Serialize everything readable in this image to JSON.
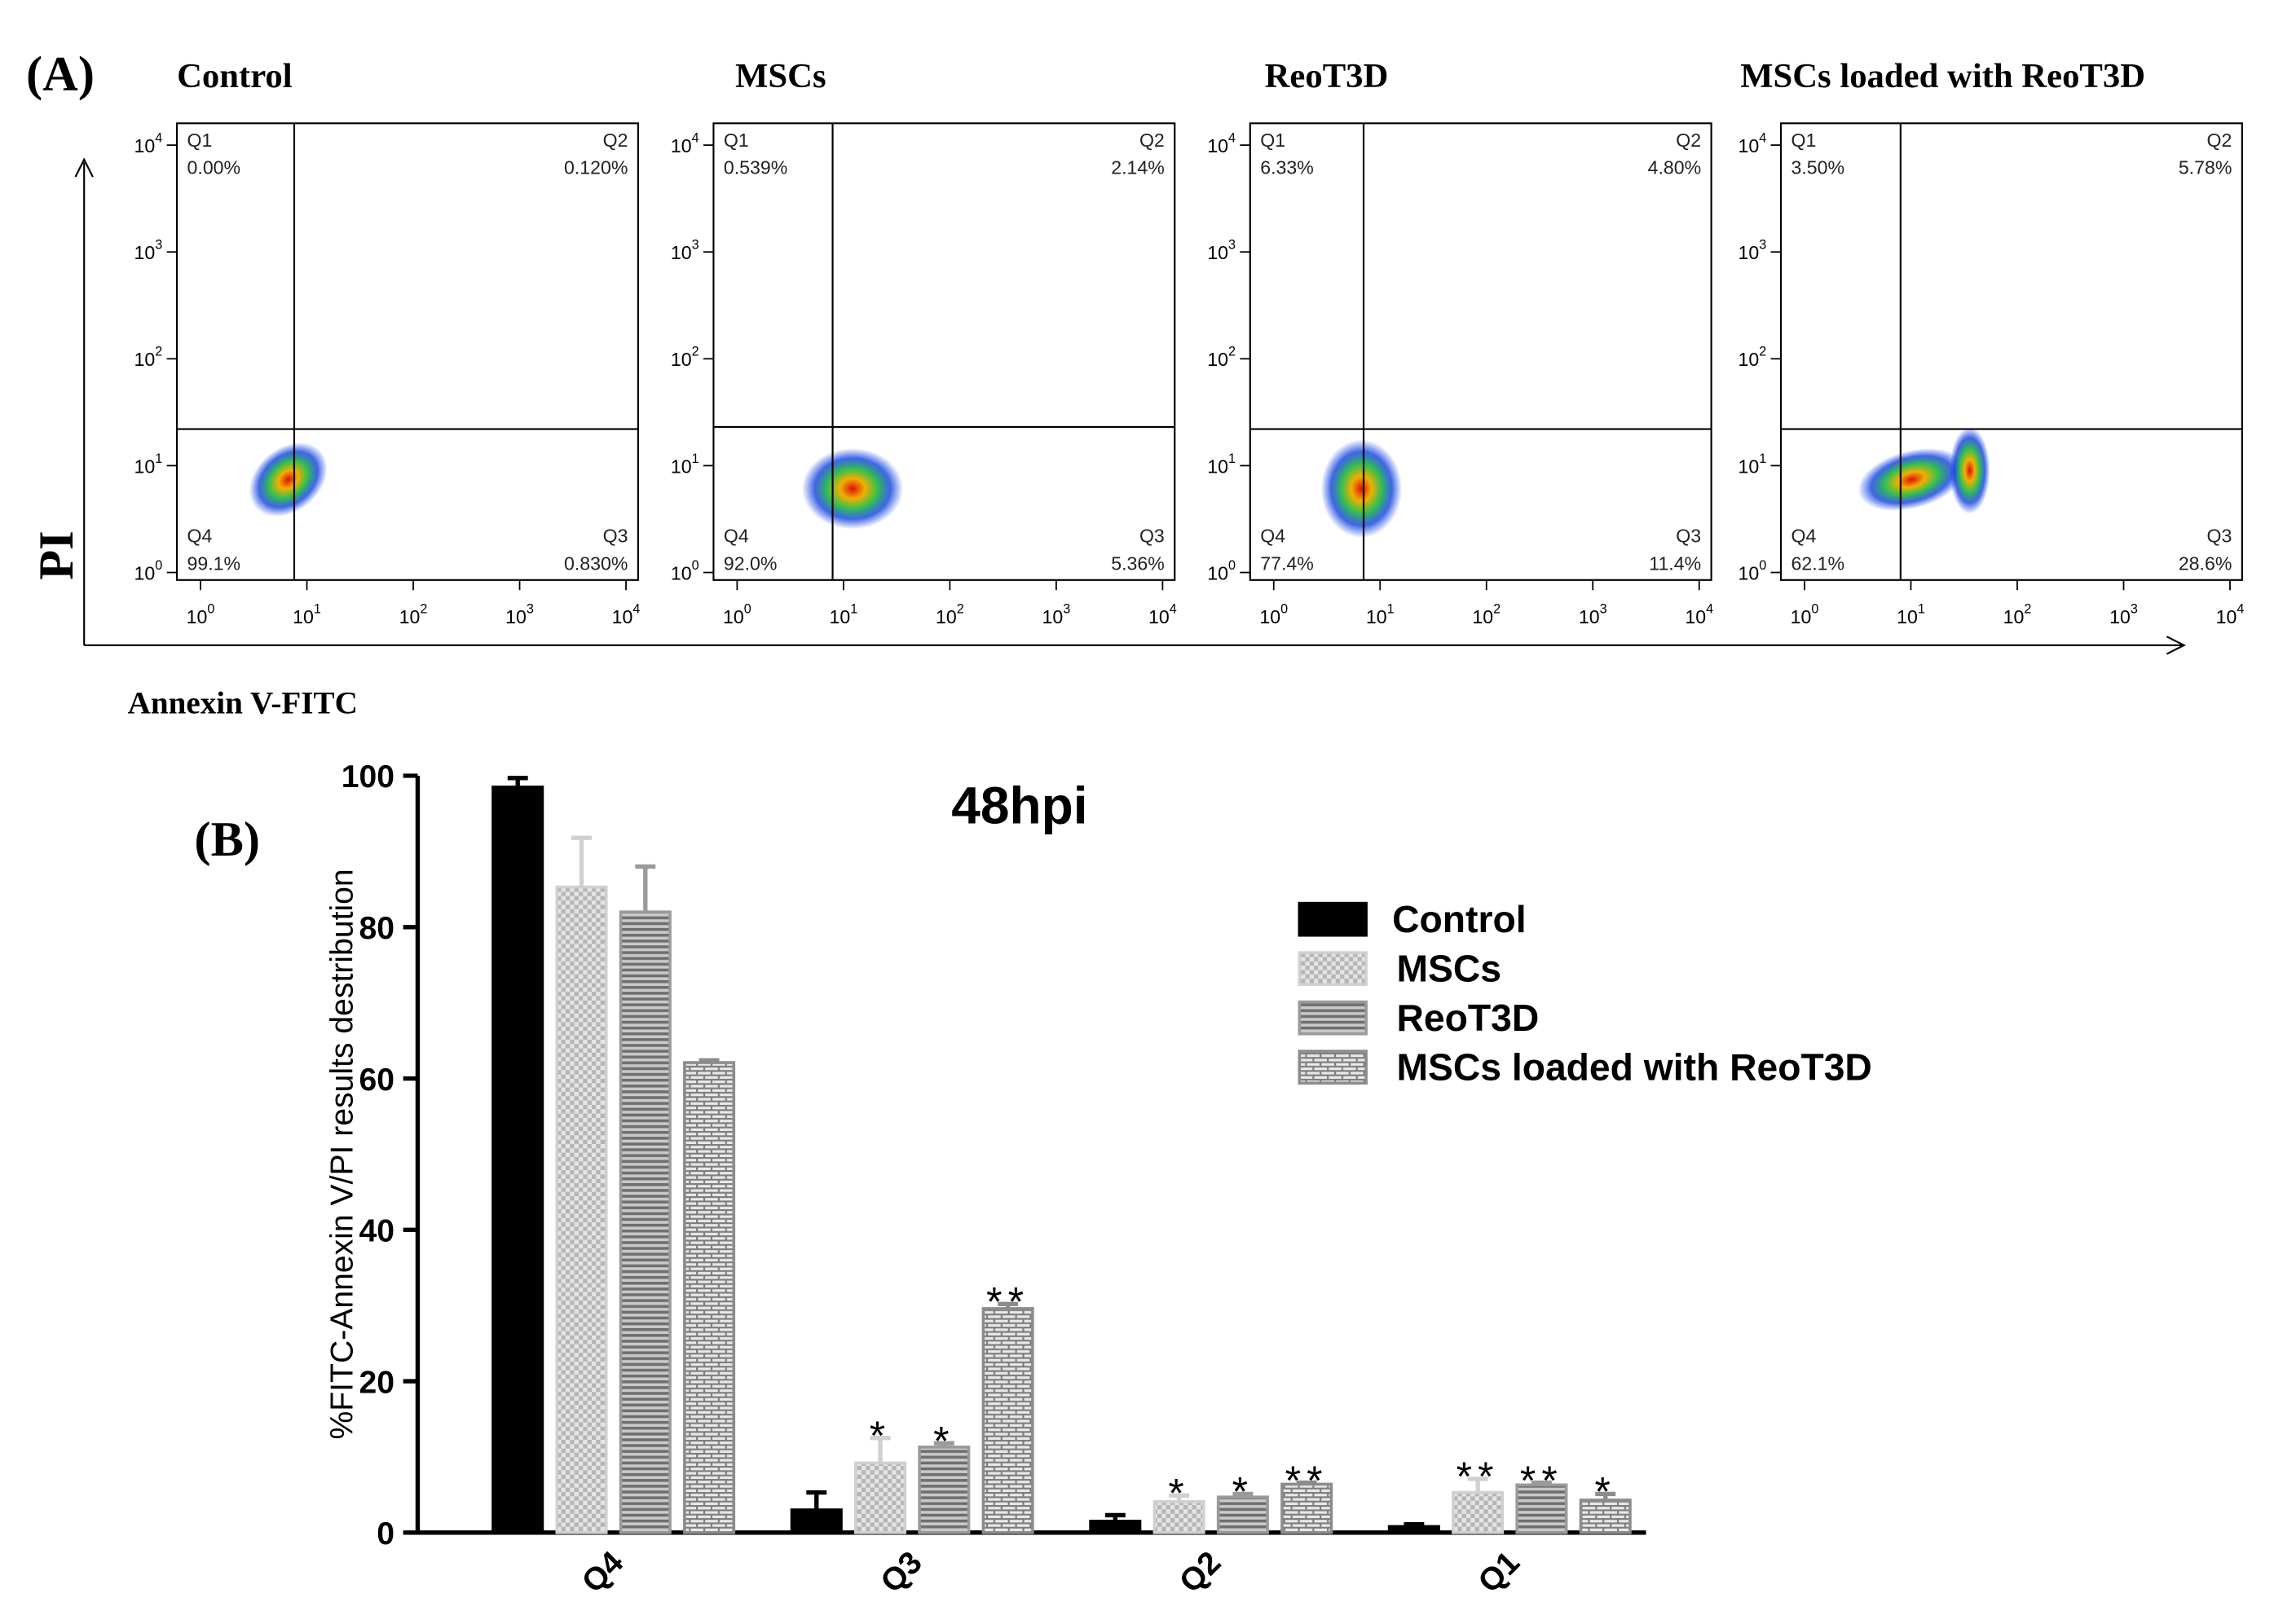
{
  "figure": {
    "panel_labels": [
      "(A)",
      "(B)"
    ],
    "x_label": "Annexin V-FITC",
    "y_label": "PI"
  },
  "chart_data": [
    {
      "type": "scatter",
      "title": "Control",
      "xlog": true,
      "ylog": true,
      "xlim": [
        0.6,
        13000
      ],
      "ylim": [
        0.85,
        16000
      ],
      "xticks": [
        {
          "value": 1,
          "label": "10^0"
        },
        {
          "value": 10,
          "label": "10^1"
        },
        {
          "value": 100,
          "label": "10^2"
        },
        {
          "value": 1000,
          "label": "10^3"
        },
        {
          "value": 10000,
          "label": "10^4"
        }
      ],
      "yticks": [
        {
          "value": 1,
          "label": "10^0"
        },
        {
          "value": 10,
          "label": "10^1"
        },
        {
          "value": 100,
          "label": "10^2"
        },
        {
          "value": 1000,
          "label": "10^3"
        },
        {
          "value": 10000,
          "label": "10^4"
        }
      ],
      "gates": {
        "x": 7.6,
        "y": 22
      },
      "quadrants": {
        "names": [
          "Q1",
          "Q2",
          "Q3",
          "Q4"
        ],
        "values": [
          0.0,
          0.12,
          0.83,
          99.1
        ],
        "value_labels": [
          "0.00%",
          "0.120%",
          "0.830%",
          "99.1%"
        ]
      }
    },
    {
      "type": "scatter",
      "title": "MSCs",
      "xlog": true,
      "ylog": true,
      "xlim": [
        0.6,
        13000
      ],
      "ylim": [
        0.85,
        16000
      ],
      "xticks": [
        {
          "value": 1,
          "label": "10^0"
        },
        {
          "value": 10,
          "label": "10^1"
        },
        {
          "value": 100,
          "label": "10^2"
        },
        {
          "value": 1000,
          "label": "10^3"
        },
        {
          "value": 10000,
          "label": "10^4"
        }
      ],
      "yticks": [
        {
          "value": 1,
          "label": "10^0"
        },
        {
          "value": 10,
          "label": "10^1"
        },
        {
          "value": 100,
          "label": "10^2"
        },
        {
          "value": 1000,
          "label": "10^3"
        },
        {
          "value": 10000,
          "label": "10^4"
        }
      ],
      "gates": {
        "x": 7.9,
        "y": 23
      },
      "quadrants": {
        "names": [
          "Q1",
          "Q2",
          "Q3",
          "Q4"
        ],
        "values": [
          0.539,
          2.14,
          5.36,
          92.0
        ],
        "value_labels": [
          "0.539%",
          "2.14%",
          "5.36%",
          "92.0%"
        ]
      }
    },
    {
      "type": "scatter",
      "title": "ReoT3D",
      "xlog": true,
      "ylog": true,
      "xlim": [
        0.6,
        13000
      ],
      "ylim": [
        0.85,
        16000
      ],
      "xticks": [
        {
          "value": 1,
          "label": "10^0"
        },
        {
          "value": 10,
          "label": "10^1"
        },
        {
          "value": 100,
          "label": "10^2"
        },
        {
          "value": 1000,
          "label": "10^3"
        },
        {
          "value": 10000,
          "label": "10^4"
        }
      ],
      "yticks": [
        {
          "value": 1,
          "label": "10^0"
        },
        {
          "value": 10,
          "label": "10^1"
        },
        {
          "value": 100,
          "label": "10^2"
        },
        {
          "value": 1000,
          "label": "10^3"
        },
        {
          "value": 10000,
          "label": "10^4"
        }
      ],
      "gates": {
        "x": 7,
        "y": 22
      },
      "quadrants": {
        "names": [
          "Q1",
          "Q2",
          "Q3",
          "Q4"
        ],
        "values": [
          6.33,
          4.8,
          11.4,
          77.4
        ],
        "value_labels": [
          "6.33%",
          "4.80%",
          "11.4%",
          "77.4%"
        ]
      }
    },
    {
      "type": "scatter",
      "title": "MSCs loaded with ReoT3D",
      "xlog": true,
      "ylog": true,
      "xlim": [
        0.6,
        13000
      ],
      "ylim": [
        0.85,
        16000
      ],
      "xticks": [
        {
          "value": 1,
          "label": "10^0"
        },
        {
          "value": 10,
          "label": "10^1"
        },
        {
          "value": 100,
          "label": "10^2"
        },
        {
          "value": 1000,
          "label": "10^3"
        },
        {
          "value": 10000,
          "label": "10^4"
        }
      ],
      "yticks": [
        {
          "value": 1,
          "label": "10^0"
        },
        {
          "value": 10,
          "label": "10^1"
        },
        {
          "value": 100,
          "label": "10^2"
        },
        {
          "value": 1000,
          "label": "10^3"
        },
        {
          "value": 10000,
          "label": "10^4"
        }
      ],
      "gates": {
        "x": 8,
        "y": 22
      },
      "quadrants": {
        "names": [
          "Q1",
          "Q2",
          "Q3",
          "Q4"
        ],
        "values": [
          3.5,
          5.78,
          28.6,
          62.1
        ],
        "value_labels": [
          "3.50%",
          "5.78%",
          "28.6%",
          "62.1%"
        ]
      }
    },
    {
      "type": "bar",
      "title": "48hpi",
      "y_label": "%FITC-Annexin V/PI results destribution",
      "categories": [
        "Q4",
        "Q3",
        "Q2",
        "Q1"
      ],
      "ylim": [
        0,
        100
      ],
      "yticks": [
        0,
        20,
        40,
        60,
        80,
        100
      ],
      "series": [
        {
          "name": "Control",
          "color": "#000000",
          "pattern": "solid",
          "values": [
            98.5,
            3,
            1.5,
            0.8
          ],
          "errors": [
            1.2,
            2.3,
            0.8,
            0.3
          ]
        },
        {
          "name": "MSCs",
          "color": "#d0d0d0",
          "pattern": "checker",
          "values": [
            85.3,
            9.2,
            4.1,
            5.3
          ],
          "errors": [
            6.5,
            3.3,
            0.8,
            1.8
          ],
          "significance": [
            null,
            "*",
            "*",
            "**"
          ]
        },
        {
          "name": "ReoT3D",
          "color": "#9a9a9a",
          "pattern": "stripes",
          "values": [
            82,
            11.3,
            4.7,
            6.3
          ],
          "errors": [
            6,
            0.5,
            0.4,
            0.3
          ],
          "significance": [
            null,
            "*",
            "*",
            "**"
          ]
        },
        {
          "name": "MSCs loaded with ReoT3D",
          "color": "#8c8c8c",
          "pattern": "brick",
          "values": [
            62.1,
            29.6,
            6.4,
            4.3
          ],
          "errors": [
            0.3,
            0.6,
            0.2,
            0.8
          ],
          "significance": [
            null,
            "**",
            "**",
            "*"
          ]
        }
      ]
    }
  ]
}
